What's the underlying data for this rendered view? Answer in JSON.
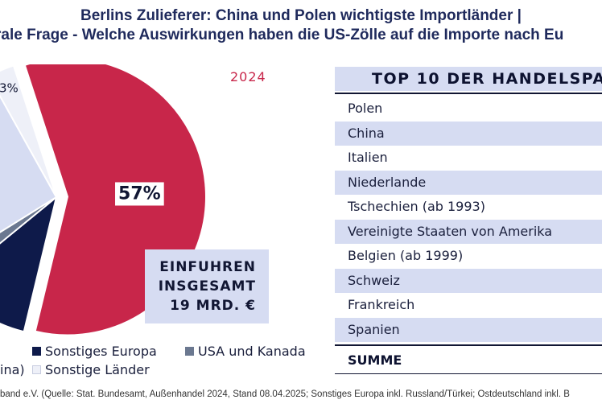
{
  "title": {
    "line1": "Berlins Zulieferer: China und Polen wichtigste Importländer |",
    "line2": "rale Frage - Welche Auswirkungen haben die US-Zölle auf die Importe nach Eu"
  },
  "colors": {
    "crimson": "#c8264a",
    "navy": "#0e1a4a",
    "slate": "#6b7890",
    "light": "#d6dcf2",
    "pale": "#eef0f8"
  },
  "chart_data": {
    "type": "pie",
    "year_label": "2024",
    "slices": [
      {
        "label": "",
        "value": 57,
        "display": "57%",
        "color": "#c8264a",
        "exploded": true
      },
      {
        "label": "Sonstiges Europa",
        "value": 10,
        "display": "",
        "color": "#0e1a4a",
        "exploded": false
      },
      {
        "label": "USA und Kanada",
        "value": 2,
        "display": "",
        "color": "#6b7890",
        "exploded": false
      },
      {
        "label": "",
        "value": 25,
        "display": "",
        "color": "#d6dcf2",
        "exploded": false
      },
      {
        "label": "Sonstige Länder",
        "value": 3,
        "display": "3%",
        "color": "#eef0f8",
        "exploded": false
      }
    ],
    "total_label": {
      "line1": "EINFUHREN",
      "line2": "INSGESAMT",
      "line3": "19 MRD. €"
    },
    "legend": [
      {
        "text": "Sonstiges Europa",
        "color": "#0e1a4a"
      },
      {
        "text": "USA und Kanada",
        "color": "#6b7890"
      },
      {
        "text": "ina)",
        "color": ""
      },
      {
        "text": "Sonstige Länder",
        "color": "#eef0f8"
      }
    ]
  },
  "table": {
    "header": "TOP 10 DER HANDELSPA",
    "rows": [
      "Polen",
      "China",
      "Italien",
      "Niederlande",
      "Tschechien (ab 1993)",
      "Vereinigte Staaten von Amerika",
      "Belgien (ab 1999)",
      "Schweiz",
      "Frankreich",
      "Spanien"
    ],
    "sum_label": "SUMME"
  },
  "source": "band e.V. (Quelle: Stat. Bundesamt, Außenhandel 2024, Stand 08.04.2025; Sonstiges Europa inkl. Russland/Türkei; Ostdeutschland inkl. B"
}
